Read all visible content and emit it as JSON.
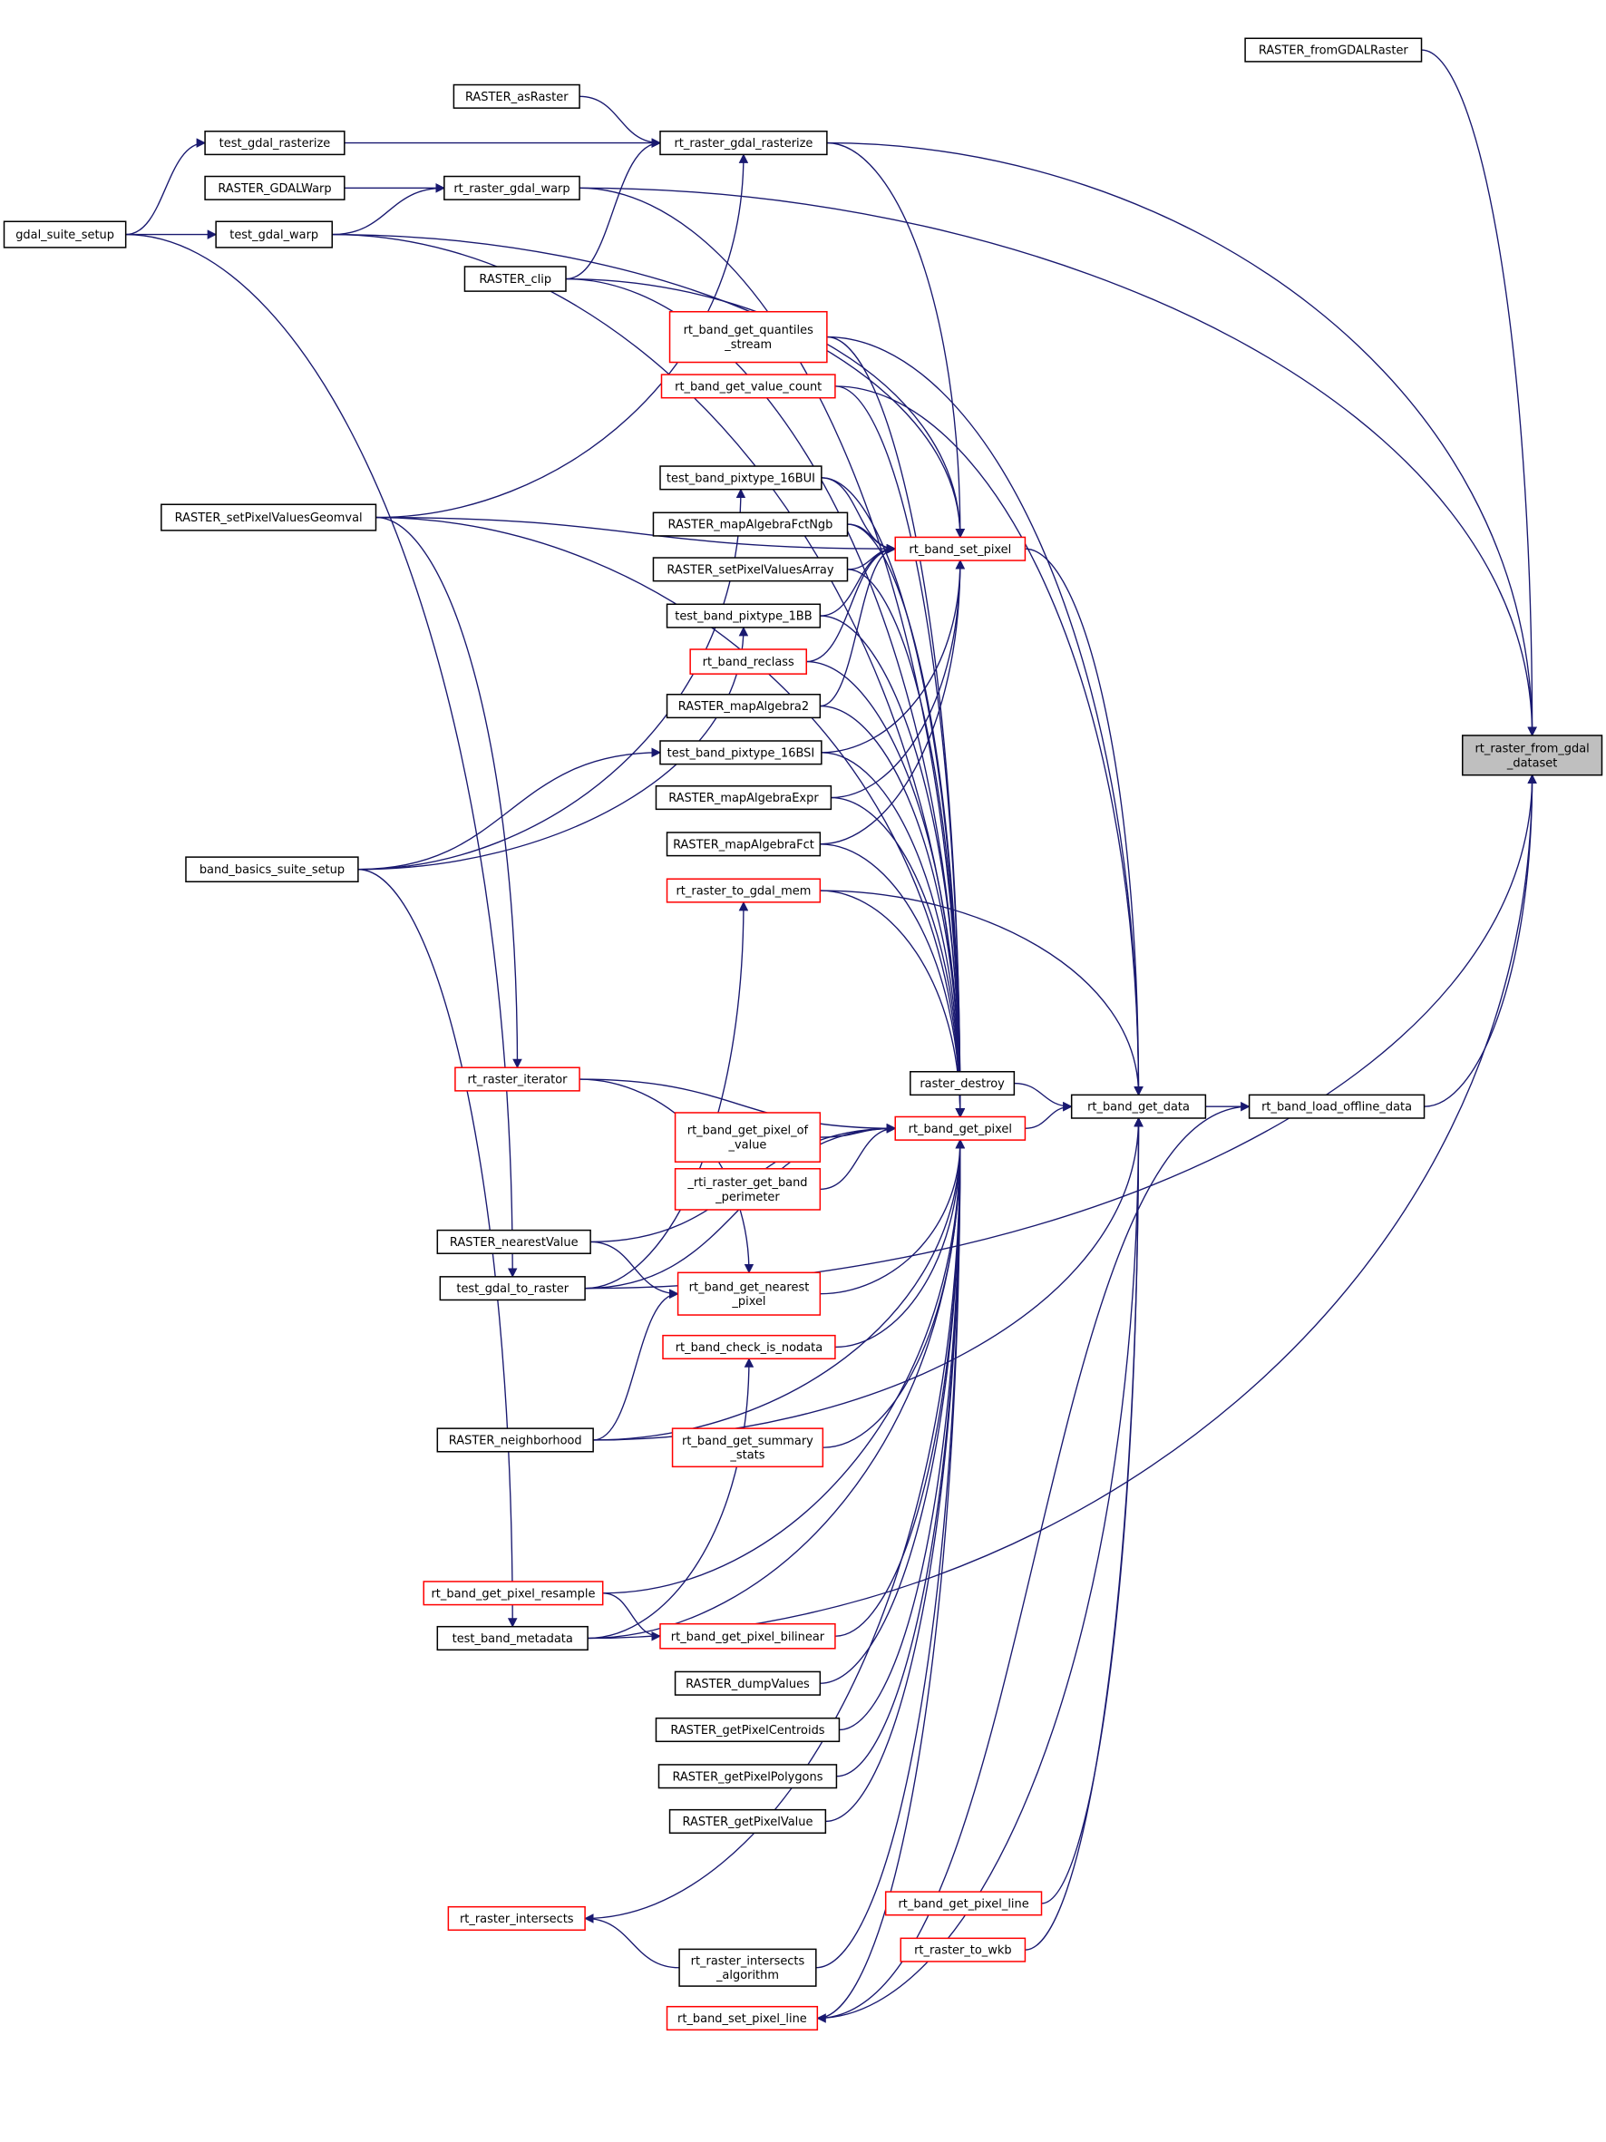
{
  "colors": {
    "edge": "#191970",
    "caller_border_red": "#ff0000",
    "caller_border_black": "#000000",
    "focus_fill": "#bfbfbf"
  },
  "focus_node": "rt_raster_from_gdal_dataset",
  "nodes": [
    {
      "id": "RASTER_fromGDALRaster",
      "lines": [
        "RASTER_fromGDALRaster"
      ],
      "style": "black"
    },
    {
      "id": "RASTER_asRaster",
      "lines": [
        "RASTER_asRaster"
      ],
      "style": "black"
    },
    {
      "id": "test_gdal_rasterize",
      "lines": [
        "test_gdal_rasterize"
      ],
      "style": "black"
    },
    {
      "id": "rt_raster_gdal_rasterize",
      "lines": [
        "rt_raster_gdal_rasterize"
      ],
      "style": "black"
    },
    {
      "id": "RASTER_GDALWarp",
      "lines": [
        "RASTER_GDALWarp"
      ],
      "style": "black"
    },
    {
      "id": "rt_raster_gdal_warp",
      "lines": [
        "rt_raster_gdal_warp"
      ],
      "style": "black"
    },
    {
      "id": "gdal_suite_setup",
      "lines": [
        "gdal_suite_setup"
      ],
      "style": "black"
    },
    {
      "id": "test_gdal_warp",
      "lines": [
        "test_gdal_warp"
      ],
      "style": "black"
    },
    {
      "id": "RASTER_clip",
      "lines": [
        "RASTER_clip"
      ],
      "style": "black"
    },
    {
      "id": "rt_band_get_quantiles_stream",
      "lines": [
        "rt_band_get_quantiles",
        "_stream"
      ],
      "style": "red"
    },
    {
      "id": "rt_band_get_value_count",
      "lines": [
        "rt_band_get_value_count"
      ],
      "style": "red"
    },
    {
      "id": "test_band_pixtype_16BUI",
      "lines": [
        "test_band_pixtype_16BUI"
      ],
      "style": "black"
    },
    {
      "id": "RASTER_setPixelValuesGeomval",
      "lines": [
        "RASTER_setPixelValuesGeomval"
      ],
      "style": "black"
    },
    {
      "id": "RASTER_mapAlgebraFctNgb",
      "lines": [
        "RASTER_mapAlgebraFctNgb"
      ],
      "style": "black"
    },
    {
      "id": "rt_band_set_pixel",
      "lines": [
        "rt_band_set_pixel"
      ],
      "style": "red"
    },
    {
      "id": "RASTER_setPixelValuesArray",
      "lines": [
        "RASTER_setPixelValuesArray"
      ],
      "style": "black"
    },
    {
      "id": "test_band_pixtype_1BB",
      "lines": [
        "test_band_pixtype_1BB"
      ],
      "style": "black"
    },
    {
      "id": "rt_band_reclass",
      "lines": [
        "rt_band_reclass"
      ],
      "style": "red"
    },
    {
      "id": "RASTER_mapAlgebra2",
      "lines": [
        "RASTER_mapAlgebra2"
      ],
      "style": "black"
    },
    {
      "id": "test_band_pixtype_16BSI",
      "lines": [
        "test_band_pixtype_16BSI"
      ],
      "style": "black"
    },
    {
      "id": "RASTER_mapAlgebraExpr",
      "lines": [
        "RASTER_mapAlgebraExpr"
      ],
      "style": "black"
    },
    {
      "id": "RASTER_mapAlgebraFct",
      "lines": [
        "RASTER_mapAlgebraFct"
      ],
      "style": "black"
    },
    {
      "id": "band_basics_suite_setup",
      "lines": [
        "band_basics_suite_setup"
      ],
      "style": "black"
    },
    {
      "id": "rt_raster_to_gdal_mem",
      "lines": [
        "rt_raster_to_gdal_mem"
      ],
      "style": "red"
    },
    {
      "id": "rt_raster_from_gdal_dataset",
      "lines": [
        "rt_raster_from_gdal",
        "_dataset"
      ],
      "style": "focus"
    },
    {
      "id": "raster_destroy",
      "lines": [
        "raster_destroy"
      ],
      "style": "black"
    },
    {
      "id": "rt_band_get_data",
      "lines": [
        "rt_band_get_data"
      ],
      "style": "black"
    },
    {
      "id": "rt_band_load_offline_data",
      "lines": [
        "rt_band_load_offline_data"
      ],
      "style": "black"
    },
    {
      "id": "rt_raster_iterator",
      "lines": [
        "rt_raster_iterator"
      ],
      "style": "red"
    },
    {
      "id": "rt_band_get_pixel",
      "lines": [
        "rt_band_get_pixel"
      ],
      "style": "red"
    },
    {
      "id": "rt_band_get_pixel_of_value",
      "lines": [
        "rt_band_get_pixel_of",
        "_value"
      ],
      "style": "red"
    },
    {
      "id": "_rti_raster_get_band_perimeter",
      "lines": [
        "_rti_raster_get_band",
        "_perimeter"
      ],
      "style": "red"
    },
    {
      "id": "RASTER_nearestValue",
      "lines": [
        "RASTER_nearestValue"
      ],
      "style": "black"
    },
    {
      "id": "test_gdal_to_raster",
      "lines": [
        "test_gdal_to_raster"
      ],
      "style": "black"
    },
    {
      "id": "rt_band_get_nearest_pixel",
      "lines": [
        "rt_band_get_nearest",
        "_pixel"
      ],
      "style": "red"
    },
    {
      "id": "rt_band_check_is_nodata",
      "lines": [
        "rt_band_check_is_nodata"
      ],
      "style": "red"
    },
    {
      "id": "RASTER_neighborhood",
      "lines": [
        "RASTER_neighborhood"
      ],
      "style": "black"
    },
    {
      "id": "rt_band_get_summary_stats",
      "lines": [
        "rt_band_get_summary",
        "_stats"
      ],
      "style": "red"
    },
    {
      "id": "rt_band_get_pixel_resample",
      "lines": [
        "rt_band_get_pixel_resample"
      ],
      "style": "red"
    },
    {
      "id": "test_band_metadata",
      "lines": [
        "test_band_metadata"
      ],
      "style": "black"
    },
    {
      "id": "rt_band_get_pixel_bilinear",
      "lines": [
        "rt_band_get_pixel_bilinear"
      ],
      "style": "red"
    },
    {
      "id": "RASTER_dumpValues",
      "lines": [
        "RASTER_dumpValues"
      ],
      "style": "black"
    },
    {
      "id": "RASTER_getPixelCentroids",
      "lines": [
        "RASTER_getPixelCentroids"
      ],
      "style": "black"
    },
    {
      "id": "RASTER_getPixelPolygons",
      "lines": [
        "RASTER_getPixelPolygons"
      ],
      "style": "black"
    },
    {
      "id": "RASTER_getPixelValue",
      "lines": [
        "RASTER_getPixelValue"
      ],
      "style": "black"
    },
    {
      "id": "rt_band_get_pixel_line",
      "lines": [
        "rt_band_get_pixel_line"
      ],
      "style": "red"
    },
    {
      "id": "rt_raster_intersects",
      "lines": [
        "rt_raster_intersects"
      ],
      "style": "red"
    },
    {
      "id": "rt_raster_to_wkb",
      "lines": [
        "rt_raster_to_wkb"
      ],
      "style": "red"
    },
    {
      "id": "rt_raster_intersects_algorithm",
      "lines": [
        "rt_raster_intersects",
        "_algorithm"
      ],
      "style": "black"
    },
    {
      "id": "rt_band_set_pixel_line",
      "lines": [
        "rt_band_set_pixel_line"
      ],
      "style": "red"
    }
  ],
  "edges": [
    [
      "RASTER_fromGDALRaster",
      "rt_raster_from_gdal_dataset"
    ],
    [
      "rt_raster_gdal_rasterize",
      "rt_raster_from_gdal_dataset"
    ],
    [
      "rt_raster_gdal_warp",
      "rt_raster_from_gdal_dataset"
    ],
    [
      "rt_band_load_offline_data",
      "rt_raster_from_gdal_dataset"
    ],
    [
      "test_band_metadata",
      "rt_raster_from_gdal_dataset"
    ],
    [
      "rt_band_get_data",
      "rt_band_load_offline_data"
    ],
    [
      "rt_band_load_offline_data",
      "rt_band_set_pixel_line"
    ],
    [
      "RASTER_asRaster",
      "rt_raster_gdal_rasterize"
    ],
    [
      "test_gdal_rasterize",
      "rt_raster_gdal_rasterize"
    ],
    [
      "RASTER_clip",
      "rt_raster_gdal_rasterize"
    ],
    [
      "RASTER_setPixelValuesGeomval",
      "rt_raster_gdal_rasterize"
    ],
    [
      "RASTER_GDALWarp",
      "rt_raster_gdal_warp"
    ],
    [
      "test_gdal_warp",
      "rt_raster_gdal_warp"
    ],
    [
      "gdal_suite_setup",
      "test_gdal_rasterize"
    ],
    [
      "gdal_suite_setup",
      "test_gdal_warp"
    ],
    [
      "gdal_suite_setup",
      "test_gdal_to_raster"
    ],
    [
      "band_basics_suite_setup",
      "test_band_pixtype_16BUI"
    ],
    [
      "band_basics_suite_setup",
      "test_band_pixtype_1BB"
    ],
    [
      "band_basics_suite_setup",
      "test_band_pixtype_16BSI"
    ],
    [
      "band_basics_suite_setup",
      "test_band_metadata"
    ],
    [
      "test_gdal_warp",
      "rt_band_set_pixel"
    ],
    [
      "rt_raster_gdal_rasterize",
      "rt_band_set_pixel"
    ],
    [
      "RASTER_clip",
      "rt_band_set_pixel"
    ],
    [
      "RASTER_setPixelValuesGeomval",
      "rt_band_set_pixel"
    ],
    [
      "test_band_pixtype_16BUI",
      "rt_band_set_pixel"
    ],
    [
      "RASTER_mapAlgebraFctNgb",
      "rt_band_set_pixel"
    ],
    [
      "RASTER_setPixelValuesArray",
      "rt_band_set_pixel"
    ],
    [
      "test_band_pixtype_1BB",
      "rt_band_set_pixel"
    ],
    [
      "rt_band_reclass",
      "rt_band_set_pixel"
    ],
    [
      "RASTER_mapAlgebra2",
      "rt_band_set_pixel"
    ],
    [
      "test_band_pixtype_16BSI",
      "rt_band_set_pixel"
    ],
    [
      "RASTER_mapAlgebraExpr",
      "rt_band_set_pixel"
    ],
    [
      "RASTER_mapAlgebraFct",
      "rt_band_set_pixel"
    ],
    [
      "rt_band_set_pixel",
      "rt_band_get_data"
    ],
    [
      "rt_band_get_pixel",
      "rt_band_get_data"
    ],
    [
      "raster_destroy",
      "rt_band_get_data"
    ],
    [
      "rt_band_get_quantiles_stream",
      "rt_band_get_data"
    ],
    [
      "rt_band_get_value_count",
      "rt_band_get_data"
    ],
    [
      "rt_raster_to_gdal_mem",
      "rt_band_get_data"
    ],
    [
      "rt_band_get_pixel_line",
      "rt_band_get_data"
    ],
    [
      "rt_raster_to_wkb",
      "rt_band_get_data"
    ],
    [
      "rt_band_set_pixel_line",
      "rt_band_get_data"
    ],
    [
      "RASTER_neighborhood",
      "rt_band_get_data"
    ],
    [
      "test_gdal_to_raster",
      "rt_raster_to_gdal_mem"
    ],
    [
      "test_gdal_to_raster",
      "rt_raster_from_gdal_dataset"
    ],
    [
      "RASTER_setPixelValuesGeomval",
      "rt_raster_iterator"
    ],
    [
      "rt_raster_iterator",
      "rt_band_get_pixel"
    ],
    [
      "rt_band_get_pixel_of_value",
      "rt_band_get_pixel"
    ],
    [
      "_rti_raster_get_band_perimeter",
      "rt_band_get_pixel"
    ],
    [
      "RASTER_nearestValue",
      "rt_band_get_pixel"
    ],
    [
      "rt_band_get_nearest_pixel",
      "rt_band_get_pixel"
    ],
    [
      "rt_band_check_is_nodata",
      "rt_band_get_pixel"
    ],
    [
      "rt_band_get_summary_stats",
      "rt_band_get_pixel"
    ],
    [
      "RASTER_neighborhood",
      "rt_band_get_pixel"
    ],
    [
      "rt_band_get_pixel_resample",
      "rt_band_get_pixel"
    ],
    [
      "rt_band_get_pixel_bilinear",
      "rt_band_get_pixel"
    ],
    [
      "RASTER_dumpValues",
      "rt_band_get_pixel"
    ],
    [
      "RASTER_getPixelCentroids",
      "rt_band_get_pixel"
    ],
    [
      "RASTER_getPixelPolygons",
      "rt_band_get_pixel"
    ],
    [
      "RASTER_getPixelValue",
      "rt_band_get_pixel"
    ],
    [
      "rt_raster_intersects",
      "rt_band_get_pixel"
    ],
    [
      "rt_raster_intersects_algorithm",
      "rt_band_get_pixel"
    ],
    [
      "rt_band_set_pixel_line",
      "rt_band_get_pixel"
    ],
    [
      "test_gdal_to_raster",
      "rt_band_get_pixel"
    ],
    [
      "test_band_metadata",
      "rt_band_get_pixel"
    ],
    [
      "rt_raster_gdal_warp",
      "rt_band_get_pixel"
    ],
    [
      "RASTER_clip",
      "rt_band_get_pixel"
    ],
    [
      "test_gdal_warp",
      "rt_band_get_pixel"
    ],
    [
      "rt_raster_to_gdal_mem",
      "rt_band_get_pixel"
    ],
    [
      "rt_band_get_quantiles_stream",
      "rt_band_get_pixel"
    ],
    [
      "rt_band_get_value_count",
      "rt_band_get_pixel"
    ],
    [
      "test_band_pixtype_16BUI",
      "rt_band_get_pixel"
    ],
    [
      "RASTER_mapAlgebraFctNgb",
      "rt_band_get_pixel"
    ],
    [
      "RASTER_setPixelValuesArray",
      "rt_band_get_pixel"
    ],
    [
      "test_band_pixtype_1BB",
      "rt_band_get_pixel"
    ],
    [
      "rt_band_reclass",
      "rt_band_get_pixel"
    ],
    [
      "RASTER_mapAlgebra2",
      "rt_band_get_pixel"
    ],
    [
      "test_band_pixtype_16BSI",
      "rt_band_get_pixel"
    ],
    [
      "RASTER_mapAlgebraExpr",
      "rt_band_get_pixel"
    ],
    [
      "RASTER_mapAlgebraFct",
      "rt_band_get_pixel"
    ],
    [
      "RASTER_setPixelValuesGeomval",
      "rt_band_get_pixel"
    ],
    [
      "rt_raster_iterator",
      "rt_band_get_nearest_pixel"
    ],
    [
      "RASTER_nearestValue",
      "rt_band_get_nearest_pixel"
    ],
    [
      "RASTER_neighborhood",
      "rt_band_get_nearest_pixel"
    ],
    [
      "test_band_metadata",
      "rt_band_check_is_nodata"
    ],
    [
      "rt_band_get_pixel_resample",
      "rt_band_get_pixel_bilinear"
    ],
    [
      "rt_raster_intersects_algorithm",
      "rt_raster_intersects"
    ]
  ]
}
